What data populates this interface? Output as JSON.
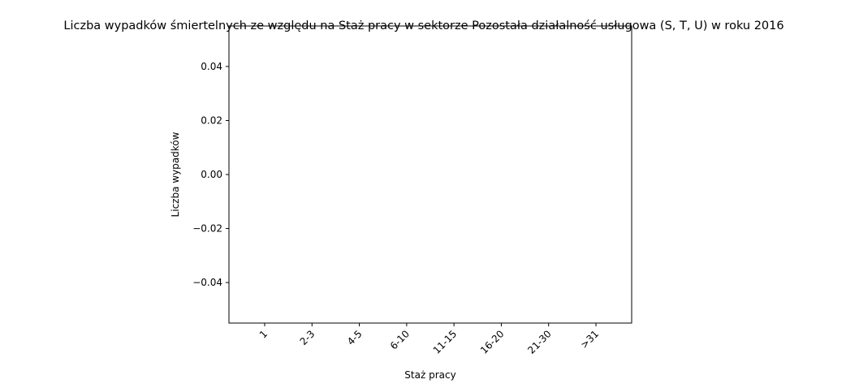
{
  "chart_data": {
    "type": "bar",
    "title": "Liczba wypadków śmiertelnych ze względu na Staż pracy w sektorze Pozostała działalność usługowa  (S, T, U)   w roku 2016",
    "xlabel": "Staż pracy",
    "ylabel": "Liczba wypadków",
    "categories": [
      "1",
      "2-3",
      "4-5",
      "6-10",
      "11-15",
      "16-20",
      "21-30",
      ">31"
    ],
    "values": [
      0,
      0,
      0,
      0,
      0,
      0,
      0,
      0
    ],
    "ylim": [
      -0.055,
      0.055
    ],
    "yticks": [
      -0.04,
      -0.02,
      0.0,
      0.02,
      0.04
    ],
    "ytick_labels": [
      "−0.04",
      "−0.02",
      "0.00",
      "0.02",
      "0.04"
    ],
    "grid": false,
    "bar_color": "#1f77b4"
  }
}
